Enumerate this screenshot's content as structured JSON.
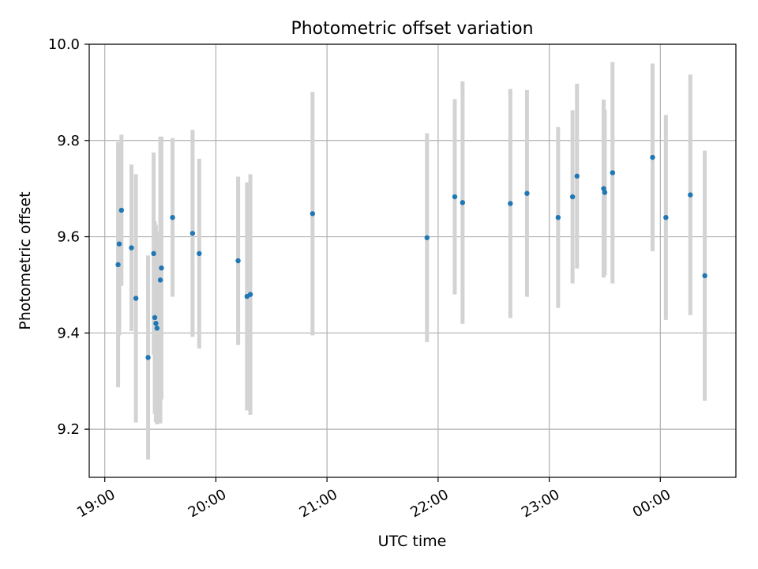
{
  "chart_data": {
    "type": "scatter",
    "title": "Photometric offset variation",
    "xlabel": "UTC time",
    "ylabel": "Photometric offset",
    "x_unit": "hours",
    "xlim": [
      18.86,
      24.68
    ],
    "ylim": [
      9.1,
      10.0
    ],
    "x_ticks": [
      {
        "value": 19,
        "label": "19:00"
      },
      {
        "value": 20,
        "label": "20:00"
      },
      {
        "value": 21,
        "label": "21:00"
      },
      {
        "value": 22,
        "label": "22:00"
      },
      {
        "value": 23,
        "label": "23:00"
      },
      {
        "value": 24,
        "label": "00:00"
      }
    ],
    "y_ticks": [
      {
        "value": 9.2,
        "label": "9.2"
      },
      {
        "value": 9.4,
        "label": "9.4"
      },
      {
        "value": 9.6,
        "label": "9.6"
      },
      {
        "value": 9.8,
        "label": "9.8"
      },
      {
        "value": 10.0,
        "label": "10.0"
      }
    ],
    "grid": true,
    "marker_color": "#1f77b4",
    "errorbar_color": "#d3d3d3",
    "points": [
      {
        "x": 19.12,
        "y": 9.542,
        "err": 0.255
      },
      {
        "x": 19.13,
        "y": 9.585,
        "err": 0.19
      },
      {
        "x": 19.15,
        "y": 9.655,
        "err": 0.157
      },
      {
        "x": 19.24,
        "y": 9.577,
        "err": 0.173
      },
      {
        "x": 19.28,
        "y": 9.472,
        "err": 0.258
      },
      {
        "x": 19.39,
        "y": 9.349,
        "err": 0.212
      },
      {
        "x": 19.44,
        "y": 9.565,
        "err": 0.21
      },
      {
        "x": 19.45,
        "y": 9.432,
        "err": 0.2
      },
      {
        "x": 19.46,
        "y": 9.42,
        "err": 0.205
      },
      {
        "x": 19.47,
        "y": 9.41,
        "err": 0.2
      },
      {
        "x": 19.5,
        "y": 9.51,
        "err": 0.298
      },
      {
        "x": 19.51,
        "y": 9.535,
        "err": 0.273
      },
      {
        "x": 19.61,
        "y": 9.64,
        "err": 0.165
      },
      {
        "x": 19.79,
        "y": 9.607,
        "err": 0.215
      },
      {
        "x": 19.85,
        "y": 9.565,
        "err": 0.197
      },
      {
        "x": 20.2,
        "y": 9.55,
        "err": 0.175
      },
      {
        "x": 20.28,
        "y": 9.476,
        "err": 0.237
      },
      {
        "x": 20.31,
        "y": 9.48,
        "err": 0.25
      },
      {
        "x": 20.87,
        "y": 9.648,
        "err": 0.253
      },
      {
        "x": 21.9,
        "y": 9.598,
        "err": 0.217
      },
      {
        "x": 22.15,
        "y": 9.683,
        "err": 0.203
      },
      {
        "x": 22.22,
        "y": 9.671,
        "err": 0.252
      },
      {
        "x": 22.65,
        "y": 9.669,
        "err": 0.238
      },
      {
        "x": 22.8,
        "y": 9.69,
        "err": 0.215
      },
      {
        "x": 23.08,
        "y": 9.64,
        "err": 0.188
      },
      {
        "x": 23.21,
        "y": 9.683,
        "err": 0.18
      },
      {
        "x": 23.25,
        "y": 9.726,
        "err": 0.192
      },
      {
        "x": 23.49,
        "y": 9.7,
        "err": 0.185
      },
      {
        "x": 23.5,
        "y": 9.692,
        "err": 0.172
      },
      {
        "x": 23.57,
        "y": 9.733,
        "err": 0.23
      },
      {
        "x": 23.93,
        "y": 9.765,
        "err": 0.195
      },
      {
        "x": 24.05,
        "y": 9.64,
        "err": 0.213
      },
      {
        "x": 24.27,
        "y": 9.687,
        "err": 0.25
      },
      {
        "x": 24.4,
        "y": 9.519,
        "err": 0.26
      }
    ]
  }
}
